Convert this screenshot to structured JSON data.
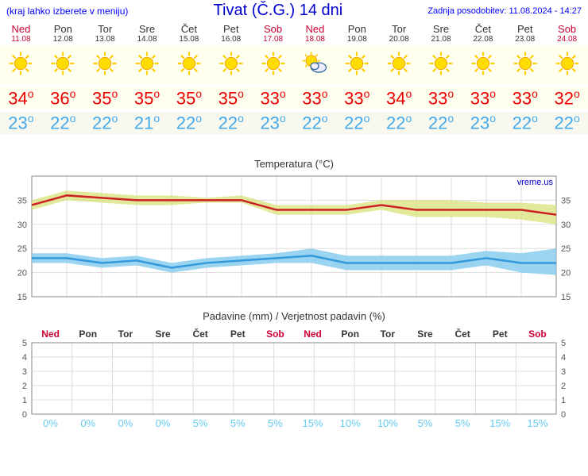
{
  "header": {
    "menu_note": "(kraj lahko izberete v meniju)",
    "title": "Tivat (Č.G.) 14 dni",
    "update_label": "Zadnja posodobitev: 11.08.2024 - 14:27"
  },
  "days": [
    {
      "name": "Ned",
      "date": "11.08",
      "weekend": true,
      "icon": "sun",
      "high": 34,
      "low": 23
    },
    {
      "name": "Pon",
      "date": "12.08",
      "weekend": false,
      "icon": "sun",
      "high": 36,
      "low": 22
    },
    {
      "name": "Tor",
      "date": "13.08",
      "weekend": false,
      "icon": "sun",
      "high": 35,
      "low": 22
    },
    {
      "name": "Sre",
      "date": "14.08",
      "weekend": false,
      "icon": "sun",
      "high": 35,
      "low": 21
    },
    {
      "name": "Čet",
      "date": "15.08",
      "weekend": false,
      "icon": "sun",
      "high": 35,
      "low": 22
    },
    {
      "name": "Pet",
      "date": "16.08",
      "weekend": false,
      "icon": "sun",
      "high": 35,
      "low": 22
    },
    {
      "name": "Sob",
      "date": "17.08",
      "weekend": true,
      "icon": "sun",
      "high": 33,
      "low": 23
    },
    {
      "name": "Ned",
      "date": "18.08",
      "weekend": true,
      "icon": "partly",
      "high": 33,
      "low": 22
    },
    {
      "name": "Pon",
      "date": "19.08",
      "weekend": false,
      "icon": "sun",
      "high": 33,
      "low": 22
    },
    {
      "name": "Tor",
      "date": "20.08",
      "weekend": false,
      "icon": "sun",
      "high": 34,
      "low": 22
    },
    {
      "name": "Sre",
      "date": "21.08",
      "weekend": false,
      "icon": "sun",
      "high": 33,
      "low": 22
    },
    {
      "name": "Čet",
      "date": "22.08",
      "weekend": false,
      "icon": "sun",
      "high": 33,
      "low": 23
    },
    {
      "name": "Pet",
      "date": "23.08",
      "weekend": false,
      "icon": "sun",
      "high": 33,
      "low": 22
    },
    {
      "name": "Sob",
      "date": "24.08",
      "weekend": true,
      "icon": "sun",
      "high": 32,
      "low": 22
    }
  ],
  "temp_chart": {
    "title": "Temperatura (°C)",
    "credit": "vreme.us",
    "ylim": [
      15,
      40
    ],
    "yticks": [
      15,
      20,
      25,
      30,
      35
    ],
    "high_line_color": "#cc2222",
    "high_band_color": "#d8e27a",
    "low_line_color": "#3399dd",
    "low_band_color": "#88ccee",
    "grid_color": "#dddddd",
    "axis_color": "#888888",
    "background": "#ffffff",
    "high_series": [
      34,
      36,
      35.5,
      35,
      35,
      35,
      35,
      33,
      33,
      33,
      34,
      33,
      33,
      33,
      33,
      32
    ],
    "high_band_upper": [
      35,
      37,
      36.5,
      36,
      36,
      35.5,
      36,
      34,
      34,
      34,
      35,
      35,
      35,
      34.5,
      34.5,
      34
    ],
    "high_band_lower": [
      33,
      35,
      34.5,
      34,
      34,
      34.5,
      34.5,
      32,
      32,
      32,
      33,
      31.5,
      31.5,
      31.5,
      31,
      30
    ],
    "low_series": [
      23,
      23,
      22,
      22.5,
      21,
      22,
      22.5,
      23,
      23.5,
      22,
      22,
      22,
      22,
      23,
      22,
      22
    ],
    "low_band_upper": [
      24,
      24,
      23,
      23.5,
      22,
      23,
      23.5,
      24,
      25,
      23.5,
      23.5,
      23.5,
      23.5,
      24.5,
      24,
      25
    ],
    "low_band_lower": [
      22,
      22,
      21,
      21.5,
      20,
      21,
      21.5,
      22,
      22,
      20.5,
      20.5,
      20.5,
      20.5,
      21.5,
      20,
      19.5
    ]
  },
  "precip_chart": {
    "title": "Padavine (mm) / Verjetnost padavin (%)",
    "ylim": [
      0,
      5
    ],
    "yticks": [
      0,
      1,
      2,
      3,
      4,
      5
    ],
    "grid_color": "#dddddd",
    "axis_color": "#888888",
    "pct_color": "#66ccee",
    "percentages": [
      "0%",
      "0%",
      "0%",
      "0%",
      "5%",
      "5%",
      "5%",
      "15%",
      "10%",
      "10%",
      "5%",
      "5%",
      "15%",
      "15%"
    ]
  }
}
